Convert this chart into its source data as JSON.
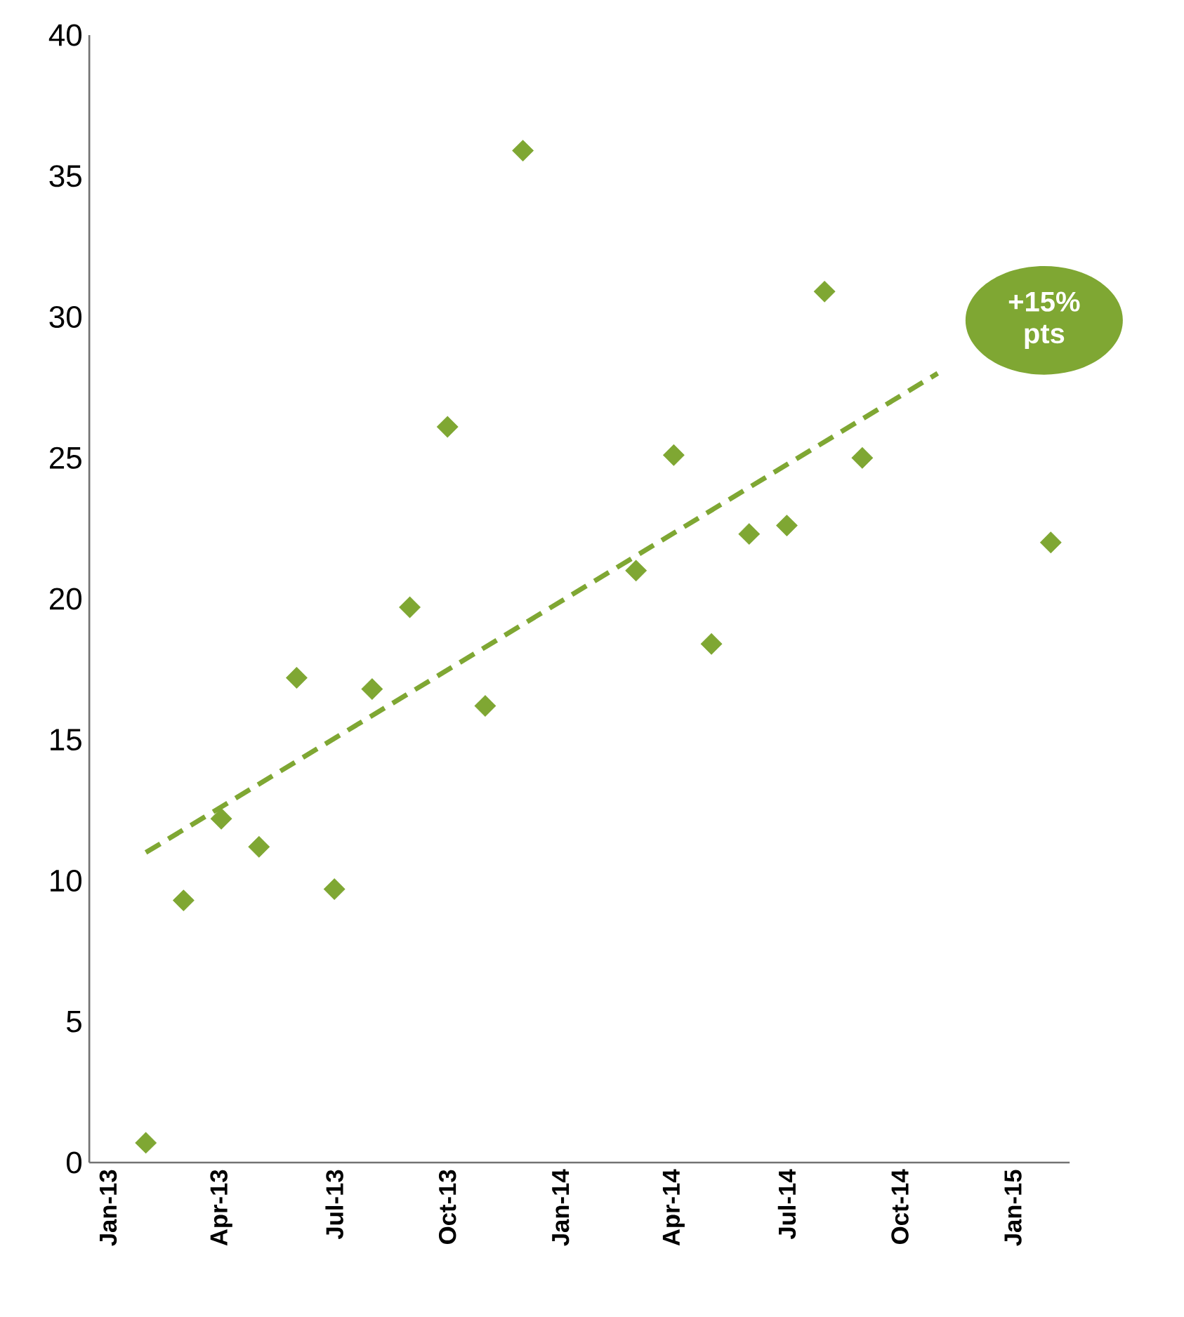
{
  "chart_data": {
    "type": "scatter",
    "xlim": [
      "2012-12-16",
      "2015-02-16"
    ],
    "xticks": [
      {
        "value": "2013-01",
        "label": "Jan-13"
      },
      {
        "value": "2013-04",
        "label": "Apr-13"
      },
      {
        "value": "2013-07",
        "label": "Jul-13"
      },
      {
        "value": "2013-10",
        "label": "Oct-13"
      },
      {
        "value": "2014-01",
        "label": "Jan-14"
      },
      {
        "value": "2014-04",
        "label": "Apr-14"
      },
      {
        "value": "2014-07",
        "label": "Jul-14"
      },
      {
        "value": "2014-10",
        "label": "Oct-14"
      },
      {
        "value": "2015-01",
        "label": "Jan-15"
      }
    ],
    "ylim": [
      0,
      40
    ],
    "yticks": [
      0,
      5,
      10,
      15,
      20,
      25,
      30,
      35,
      40
    ],
    "series": [
      {
        "color": "#7fa733",
        "marker": "diamond",
        "x": [
          "2013-02",
          "2013-03",
          "2013-04",
          "2013-05",
          "2013-06",
          "2013-07",
          "2013-08",
          "2013-09",
          "2013-10",
          "2013-11",
          "2013-12",
          "2014-03",
          "2014-04",
          "2014-05",
          "2014-06",
          "2014-07",
          "2014-08",
          "2014-09",
          "2015-02"
        ],
        "values": [
          0.7,
          9.3,
          12.2,
          11.2,
          17.2,
          9.7,
          16.8,
          19.7,
          26.1,
          16.2,
          35.9,
          21.0,
          25.1,
          18.4,
          22.3,
          22.6,
          30.9,
          25.0,
          22.0
        ]
      },
      {
        "type": "line",
        "color": "#7fa733",
        "marker": "none",
        "line_style": "dashed",
        "x": [
          "2013-02",
          "2014-11"
        ],
        "values": [
          11.0,
          28.0
        ]
      }
    ],
    "annotations": [
      "+15% pts"
    ]
  }
}
